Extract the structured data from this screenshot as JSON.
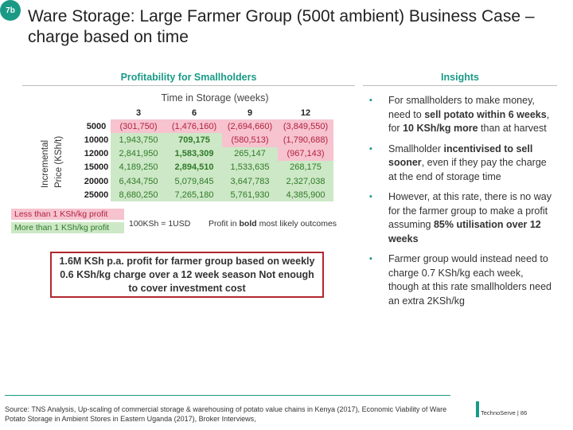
{
  "slide_number": "7b",
  "title": "Ware Storage: Large Farmer Group (500t ambient) Business Case – charge based on time",
  "profitability": {
    "heading": "Profitability for Smallholders",
    "time_axis_label": "Time in Storage (weeks)",
    "y_axis_label_line1": "Incremental",
    "y_axis_label_line2": "Price (KSh/t)",
    "columns": [
      "3",
      "6",
      "9",
      "12"
    ],
    "rows": [
      {
        "label": "5000",
        "cells": [
          "(301,750)",
          "(1,476,160)",
          "(2,694,660)",
          "(3,849,550)"
        ]
      },
      {
        "label": "10000",
        "cells": [
          "1,943,750",
          "709,175",
          "(580,513)",
          "(1,790,688)"
        ]
      },
      {
        "label": "12000",
        "cells": [
          "2,841,950",
          "1,583,309",
          "265,147",
          "(967,143)"
        ]
      },
      {
        "label": "15000",
        "cells": [
          "4,189,250",
          "2,894,510",
          "1,533,635",
          "268,175"
        ]
      },
      {
        "label": "20000",
        "cells": [
          "6,434,750",
          "5,079,845",
          "3,647,783",
          "2,327,038"
        ]
      },
      {
        "label": "25000",
        "cells": [
          "8,680,250",
          "7,265,180",
          "5,761,930",
          "4,385,900"
        ]
      }
    ],
    "legend_negative": "Less than 1 KSh/kg profit",
    "legend_positive": "More than 1 KSh/kg profit",
    "fx_note": "100KSh = 1USD",
    "profit_note_prefix": "Profit in ",
    "profit_note_bold": "bold",
    "profit_note_suffix": " most likely outcomes",
    "callout": "1.6M KSh p.a. profit for farmer group based on weekly 0.6 KSh/kg charge over a 12 week season Not enough to cover investment cost"
  },
  "insights": {
    "heading": "Insights",
    "bullet": "▪",
    "items": [
      [
        {
          "t": "For smallholders to make money, need to "
        },
        {
          "t": "sell potato within 6 weeks",
          "b": true
        },
        {
          "t": ", for "
        },
        {
          "t": "10 KSh/kg more",
          "b": true
        },
        {
          "t": " than at harvest"
        }
      ],
      [
        {
          "t": "Smallholder "
        },
        {
          "t": "incentivised to sell sooner",
          "b": true
        },
        {
          "t": ", even if they pay the charge at the end of storage time"
        }
      ],
      [
        {
          "t": "However, at this rate, there is no way for the farmer group to make a profit assuming "
        },
        {
          "t": "85% utilisation over 12 weeks",
          "b": true
        }
      ],
      [
        {
          "t": "Farmer group would instead need to charge 0.7 KSh/kg each week, though at this rate smallholders need an extra 2KSh/kg"
        }
      ]
    ]
  },
  "source": "Source: TNS Analysis, Up-scaling of commercial storage & warehousing of potato value chains in Kenya (2017), Economic Viability of Ware Potato Storage in Ambient Stores in Eastern Uganda (2017), Broker Interviews,",
  "footer": "TechnoServe | 86",
  "colors": {
    "accent": "#1a9a86",
    "negative_bg": "#f6c3cf",
    "negative_text": "#b3223f",
    "positive_bg": "#cde8c6",
    "positive_text": "#2f7a2a",
    "callout_border": "#b1282e"
  }
}
